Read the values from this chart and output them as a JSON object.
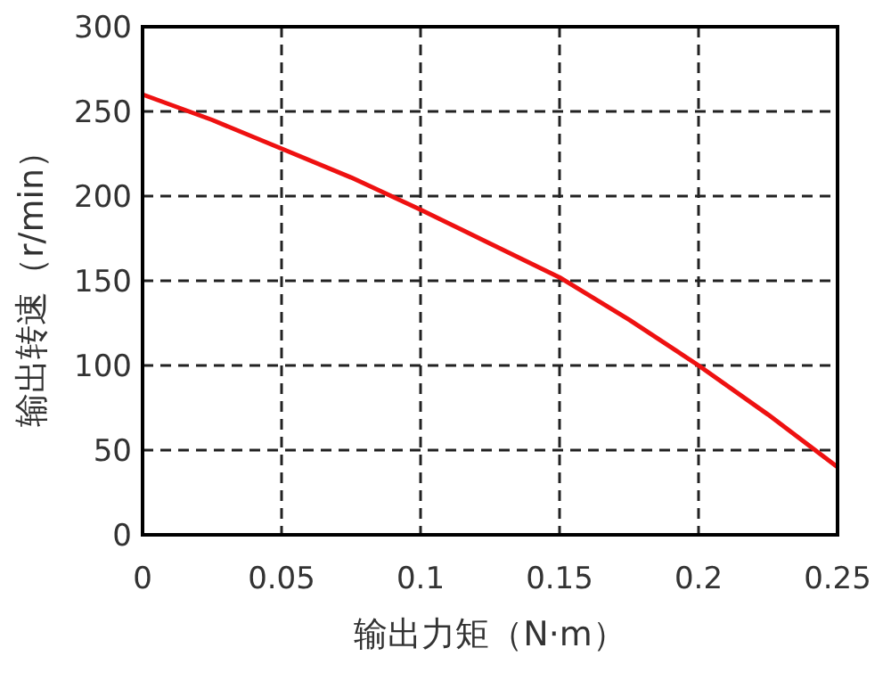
{
  "chart_data": {
    "type": "line",
    "xlabel": "输出力矩（N·m）",
    "ylabel": "输出转速（r/min）",
    "x": [
      0,
      0.025,
      0.05,
      0.075,
      0.1,
      0.125,
      0.15,
      0.175,
      0.2,
      0.225,
      0.25
    ],
    "series": [
      {
        "color": "#ee1111",
        "values": [
          260,
          245,
          228,
          211,
          192,
          172,
          152,
          127,
          100,
          71,
          40
        ]
      }
    ],
    "xlim": [
      0,
      0.25
    ],
    "xticks": [
      0,
      0.05,
      0.1,
      0.15,
      0.2,
      0.25
    ],
    "ylim": [
      0,
      300
    ],
    "yticks": [
      0,
      50,
      100,
      150,
      200,
      250,
      300
    ],
    "grid": true,
    "line_style": "solid",
    "marker": "none"
  }
}
